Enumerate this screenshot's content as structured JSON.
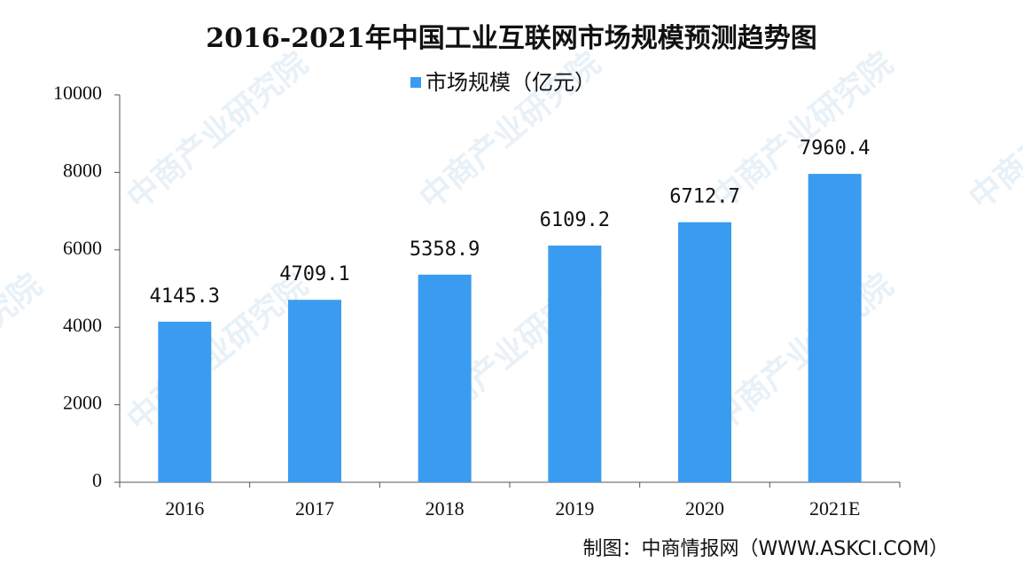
{
  "chart_data": {
    "type": "bar",
    "title": "2016-2021年中国工业互联网市场规模预测趋势图",
    "series": [
      {
        "name": "市场规模（亿元）",
        "color": "#3a9cf0",
        "values": [
          4145.3,
          4709.1,
          5358.9,
          6109.2,
          6712.7,
          7960.4
        ]
      }
    ],
    "categories": [
      "2016",
      "2017",
      "2018",
      "2019",
      "2020",
      "2021E"
    ],
    "ylim": [
      0,
      10000
    ],
    "yticks": [
      0,
      2000,
      4000,
      6000,
      8000,
      10000
    ],
    "grid": false,
    "legend": "top",
    "source": "制图：中商情报网（WWW.ASKCI.COM）",
    "watermark": "中商产业研究院"
  }
}
